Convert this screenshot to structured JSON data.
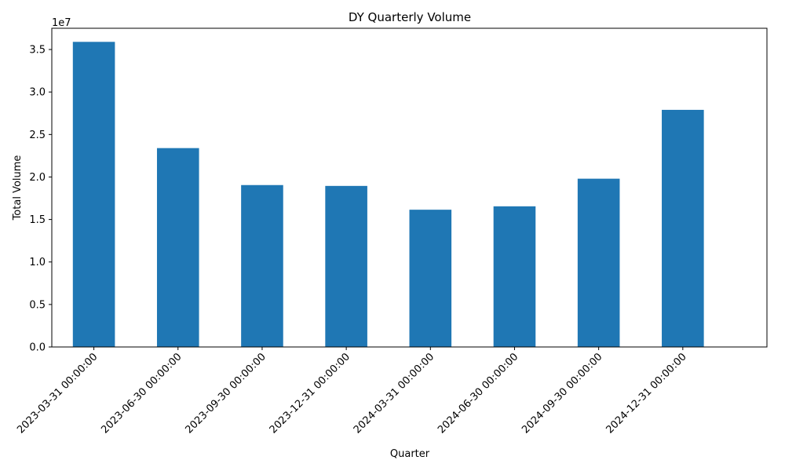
{
  "chart_data": {
    "type": "bar",
    "title": "DY Quarterly Volume",
    "xlabel": "Quarter",
    "ylabel": "Total Volume",
    "offset_label": "1e7",
    "categories": [
      "2023-03-31 00:00:00",
      "2023-06-30 00:00:00",
      "2023-09-30 00:00:00",
      "2023-12-31 00:00:00",
      "2024-03-31 00:00:00",
      "2024-06-30 00:00:00",
      "2024-09-30 00:00:00",
      "2024-12-31 00:00:00"
    ],
    "values": [
      35900000,
      23400000,
      19050000,
      18950000,
      16150000,
      16550000,
      19800000,
      27900000
    ],
    "ylim": [
      0,
      37500000
    ],
    "yticks": [
      0,
      5000000,
      10000000,
      15000000,
      20000000,
      25000000,
      30000000,
      35000000
    ],
    "ytick_labels": [
      "0.0",
      "0.5",
      "1.0",
      "1.5",
      "2.0",
      "2.5",
      "3.0",
      "3.5"
    ],
    "bar_color": "#1f77b4",
    "grid": false,
    "legend": "none"
  }
}
